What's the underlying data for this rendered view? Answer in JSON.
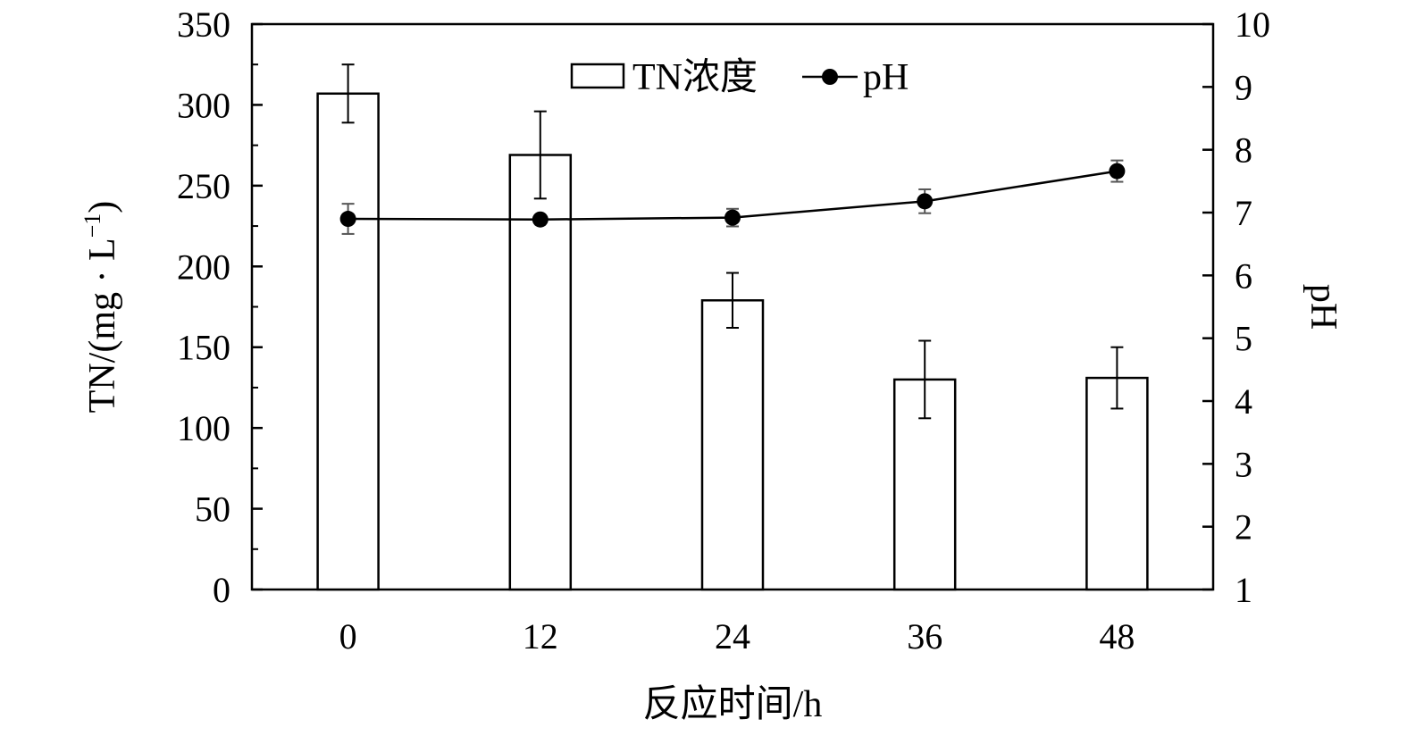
{
  "chart_data": {
    "type": "bar",
    "categories": [
      "0",
      "12",
      "24",
      "36",
      "48"
    ],
    "series": [
      {
        "name": "TN浓度",
        "type": "bar",
        "axis": "left",
        "values": [
          307,
          269,
          179,
          130,
          131
        ],
        "errors": [
          18,
          27,
          17,
          24,
          19
        ]
      },
      {
        "name": "pH",
        "type": "line",
        "axis": "right",
        "values": [
          6.9,
          6.89,
          6.92,
          7.18,
          7.66
        ],
        "errors": [
          0.24,
          0.05,
          0.14,
          0.19,
          0.17
        ]
      }
    ],
    "xlabel": "反应时间/h",
    "ylabel": "TN/(mg · L",
    "ylabel_sup": "−1",
    "ylabel_close": ")",
    "y2label": "pH",
    "ylim": [
      0,
      350
    ],
    "y2lim": [
      1,
      10
    ],
    "yticks": [
      "0",
      "50",
      "100",
      "150",
      "200",
      "250",
      "300",
      "350"
    ],
    "y2ticks": [
      "1",
      "2",
      "3",
      "4",
      "5",
      "6",
      "7",
      "8",
      "9",
      "10"
    ],
    "grid": false,
    "legend_position": "top-center"
  }
}
